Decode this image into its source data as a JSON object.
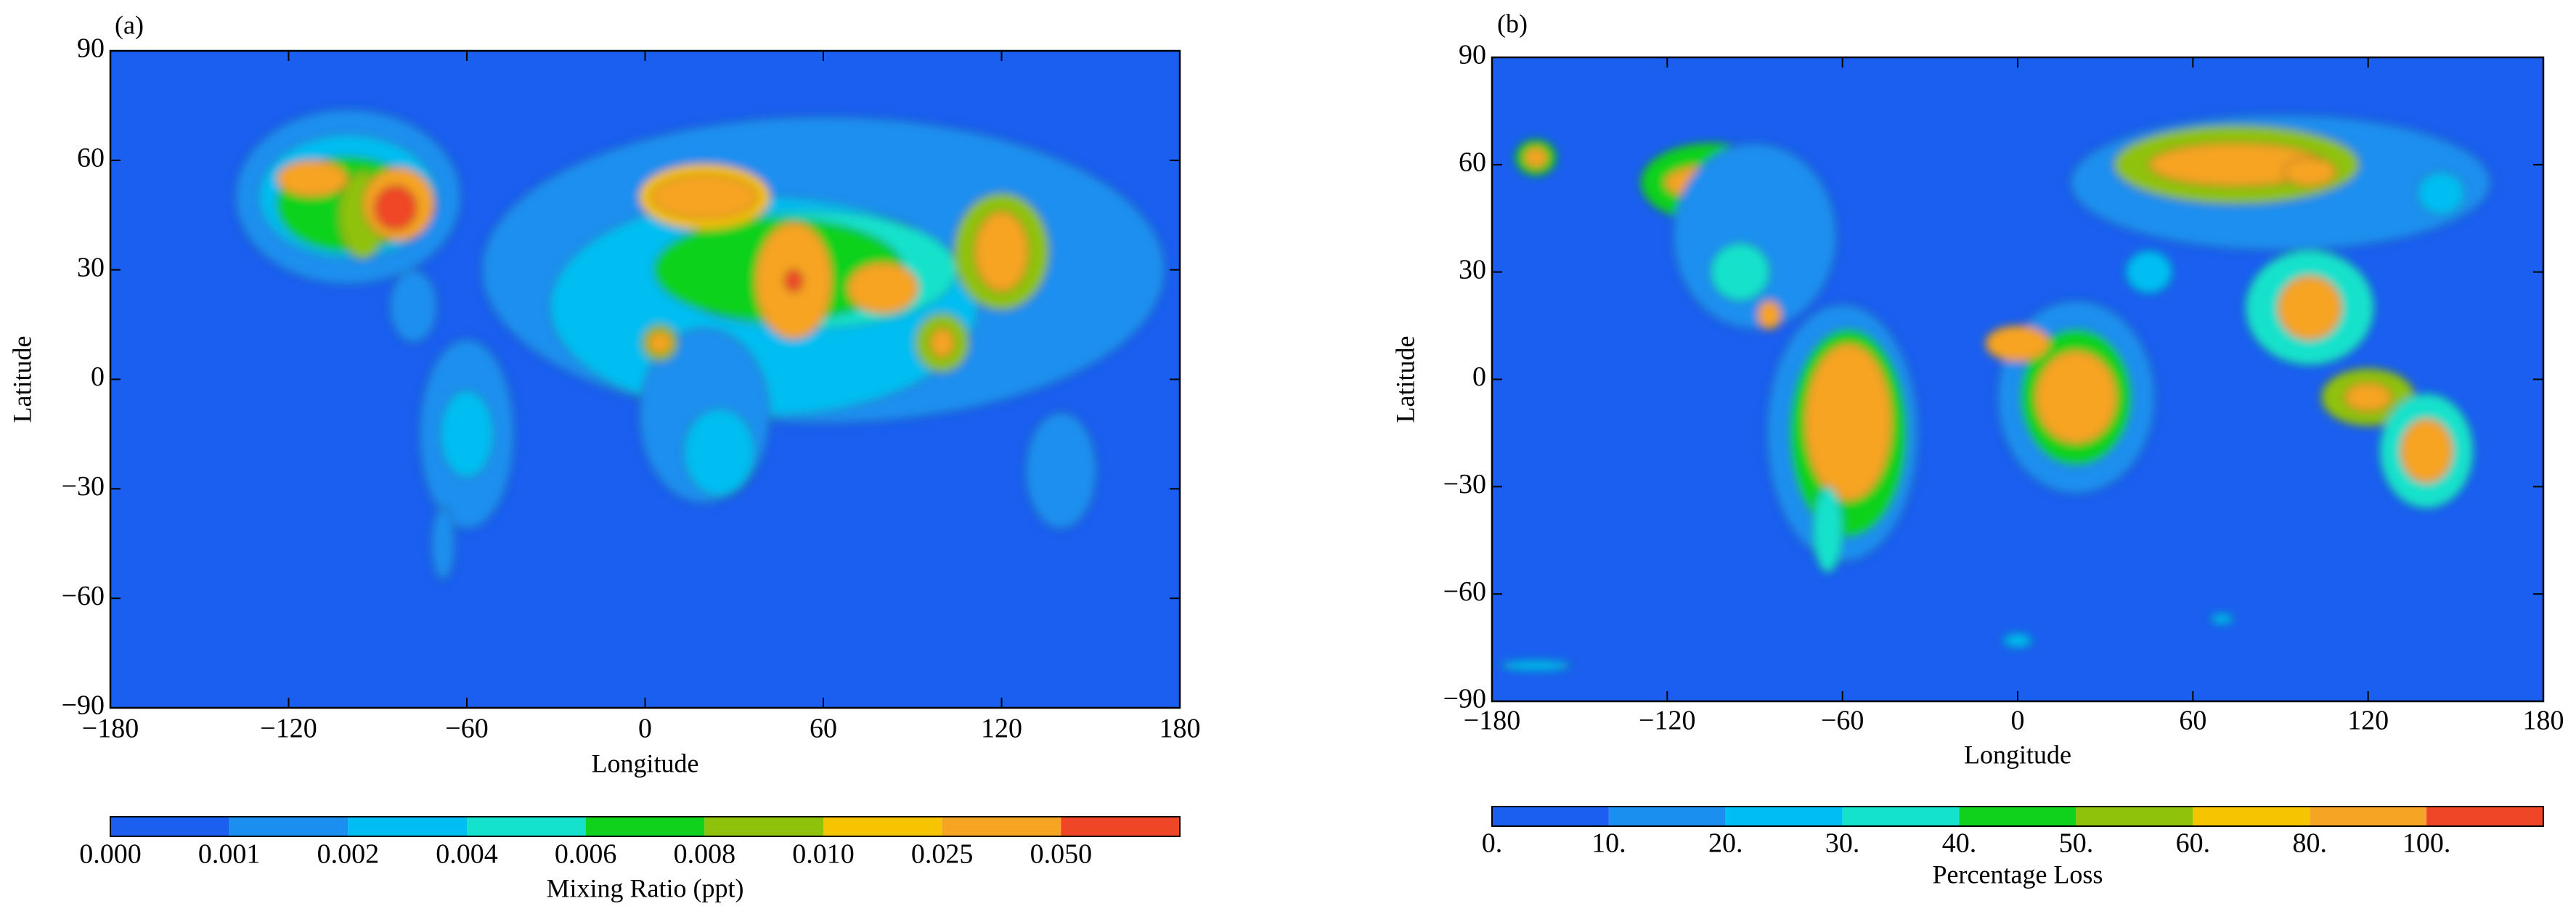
{
  "chart_data": [
    {
      "type": "contour-map",
      "panel_label": "(a)",
      "xlabel": "Longitude",
      "ylabel": "Latitude",
      "xlim": [
        -180,
        180
      ],
      "ylim": [
        -90,
        90
      ],
      "xticks": [
        {
          "value": -180,
          "label": "−180"
        },
        {
          "value": -120,
          "label": "−120"
        },
        {
          "value": -60,
          "label": "−60"
        },
        0,
        60,
        120,
        180
      ],
      "yticks": [
        90,
        60,
        30,
        0,
        {
          "value": -30,
          "label": "−30"
        },
        {
          "value": -60,
          "label": "−60"
        },
        {
          "value": -90,
          "label": "−90"
        }
      ],
      "colorbar": {
        "label": "Mixing Ratio (ppt)",
        "levels": [
          {
            "value": 0,
            "label": "0.000"
          },
          0.001,
          0.002,
          0.004,
          0.006,
          0.008,
          {
            "value": 0.01,
            "label": "0.010"
          },
          0.025,
          {
            "value": 0.05,
            "label": "0.050"
          }
        ],
        "colors": [
          "#1a5ff0",
          "#1a8ff0",
          "#00bef2",
          "#14e2cc",
          "#10d21c",
          "#8fc20a",
          "#f6c400",
          "#f6a424",
          "#f04628"
        ]
      }
    },
    {
      "type": "contour-map",
      "panel_label": "(b)",
      "xlabel": "Longitude",
      "ylabel": "Latitude",
      "xlim": [
        -180,
        180
      ],
      "ylim": [
        -90,
        90
      ],
      "xticks": [
        {
          "value": -180,
          "label": "−180"
        },
        {
          "value": -120,
          "label": "−120"
        },
        {
          "value": -60,
          "label": "−60"
        },
        0,
        60,
        120,
        180
      ],
      "yticks": [
        90,
        60,
        30,
        0,
        {
          "value": -30,
          "label": "−30"
        },
        {
          "value": -60,
          "label": "−60"
        },
        {
          "value": -90,
          "label": "−90"
        }
      ],
      "colorbar": {
        "label": "Percentage Loss",
        "levels": [
          {
            "value": 0,
            "label": "0."
          },
          {
            "value": 10,
            "label": "10."
          },
          {
            "value": 20,
            "label": "20."
          },
          {
            "value": 30,
            "label": "30."
          },
          {
            "value": 40,
            "label": "40."
          },
          {
            "value": 50,
            "label": "50."
          },
          {
            "value": 60,
            "label": "60."
          },
          {
            "value": 80,
            "label": "80."
          },
          {
            "value": 100,
            "label": "100."
          }
        ],
        "colors": [
          "#1a5ff0",
          "#1a8ff0",
          "#00bef2",
          "#14e2cc",
          "#10d21c",
          "#8fc20a",
          "#f6c400",
          "#f6a424",
          "#f04628"
        ]
      }
    }
  ]
}
